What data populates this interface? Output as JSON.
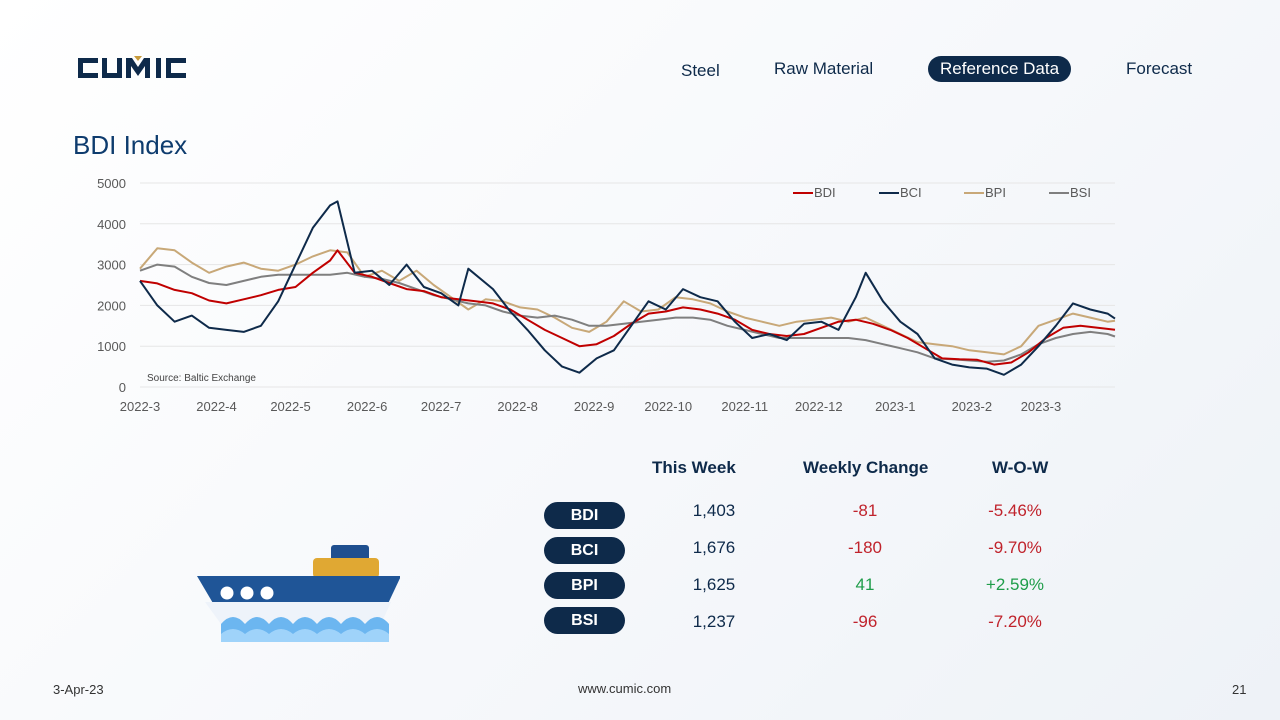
{
  "brand": {
    "logo_text": "CUMIC",
    "accent": "#0e2a4a",
    "gold": "#c89b3c"
  },
  "nav": {
    "items": [
      "Steel",
      "Raw Material",
      "Reference Data",
      "Forecast"
    ],
    "active": "Reference Data"
  },
  "page_title": "BDI Index",
  "chart_data": {
    "type": "line",
    "title": "",
    "ylim": [
      0,
      5000
    ],
    "yticks": [
      0,
      1000,
      2000,
      3000,
      4000,
      5000
    ],
    "x_range": [
      "2022-03-01",
      "2023-03-31"
    ],
    "xticks": [
      "2022-3",
      "2022-4",
      "2022-5",
      "2022-6",
      "2022-7",
      "2022-8",
      "2022-9",
      "2022-10",
      "2022-11",
      "2022-12",
      "2023-1",
      "2023-2",
      "2023-3"
    ],
    "legend_position": "top-right",
    "source_note": "Source: Baltic Exchange",
    "grid": true,
    "series": [
      {
        "name": "BDI",
        "color": "#c00000",
        "points": [
          [
            "2022-03-01",
            2600
          ],
          [
            "2022-03-08",
            2540
          ],
          [
            "2022-03-15",
            2380
          ],
          [
            "2022-03-22",
            2300
          ],
          [
            "2022-03-29",
            2120
          ],
          [
            "2022-04-05",
            2050
          ],
          [
            "2022-04-12",
            2150
          ],
          [
            "2022-04-19",
            2250
          ],
          [
            "2022-04-26",
            2380
          ],
          [
            "2022-05-03",
            2450
          ],
          [
            "2022-05-10",
            2800
          ],
          [
            "2022-05-17",
            3100
          ],
          [
            "2022-05-20",
            3350
          ],
          [
            "2022-05-27",
            2800
          ],
          [
            "2022-06-03",
            2700
          ],
          [
            "2022-06-10",
            2550
          ],
          [
            "2022-06-17",
            2400
          ],
          [
            "2022-06-24",
            2350
          ],
          [
            "2022-07-01",
            2200
          ],
          [
            "2022-07-08",
            2150
          ],
          [
            "2022-07-15",
            2100
          ],
          [
            "2022-07-22",
            2050
          ],
          [
            "2022-07-29",
            1900
          ],
          [
            "2022-08-05",
            1650
          ],
          [
            "2022-08-12",
            1400
          ],
          [
            "2022-08-19",
            1200
          ],
          [
            "2022-08-26",
            1000
          ],
          [
            "2022-09-02",
            1050
          ],
          [
            "2022-09-09",
            1250
          ],
          [
            "2022-09-16",
            1550
          ],
          [
            "2022-09-23",
            1800
          ],
          [
            "2022-09-30",
            1850
          ],
          [
            "2022-10-07",
            1950
          ],
          [
            "2022-10-14",
            1900
          ],
          [
            "2022-10-21",
            1800
          ],
          [
            "2022-10-28",
            1650
          ],
          [
            "2022-11-04",
            1400
          ],
          [
            "2022-11-11",
            1300
          ],
          [
            "2022-11-18",
            1250
          ],
          [
            "2022-11-25",
            1300
          ],
          [
            "2022-12-02",
            1450
          ],
          [
            "2022-12-09",
            1600
          ],
          [
            "2022-12-16",
            1650
          ],
          [
            "2022-12-23",
            1550
          ],
          [
            "2022-12-30",
            1400
          ],
          [
            "2023-01-06",
            1200
          ],
          [
            "2023-01-13",
            950
          ],
          [
            "2023-01-20",
            700
          ],
          [
            "2023-01-27",
            680
          ],
          [
            "2023-02-03",
            670
          ],
          [
            "2023-02-10",
            550
          ],
          [
            "2023-02-17",
            600
          ],
          [
            "2023-02-24",
            850
          ],
          [
            "2023-03-03",
            1200
          ],
          [
            "2023-03-10",
            1450
          ],
          [
            "2023-03-17",
            1500
          ],
          [
            "2023-03-24",
            1450
          ],
          [
            "2023-03-31",
            1403
          ]
        ]
      },
      {
        "name": "BCI",
        "color": "#0e2a4a",
        "points": [
          [
            "2022-03-01",
            2600
          ],
          [
            "2022-03-08",
            2000
          ],
          [
            "2022-03-15",
            1600
          ],
          [
            "2022-03-22",
            1750
          ],
          [
            "2022-03-29",
            1450
          ],
          [
            "2022-04-05",
            1400
          ],
          [
            "2022-04-12",
            1350
          ],
          [
            "2022-04-19",
            1500
          ],
          [
            "2022-04-26",
            2100
          ],
          [
            "2022-05-03",
            3000
          ],
          [
            "2022-05-10",
            3900
          ],
          [
            "2022-05-17",
            4450
          ],
          [
            "2022-05-20",
            4550
          ],
          [
            "2022-05-27",
            2800
          ],
          [
            "2022-06-03",
            2850
          ],
          [
            "2022-06-10",
            2500
          ],
          [
            "2022-06-17",
            3000
          ],
          [
            "2022-06-24",
            2450
          ],
          [
            "2022-07-01",
            2300
          ],
          [
            "2022-07-08",
            2000
          ],
          [
            "2022-07-12",
            2900
          ],
          [
            "2022-07-22",
            2400
          ],
          [
            "2022-07-29",
            1850
          ],
          [
            "2022-08-05",
            1400
          ],
          [
            "2022-08-12",
            900
          ],
          [
            "2022-08-19",
            500
          ],
          [
            "2022-08-26",
            350
          ],
          [
            "2022-09-02",
            700
          ],
          [
            "2022-09-09",
            900
          ],
          [
            "2022-09-16",
            1500
          ],
          [
            "2022-09-23",
            2100
          ],
          [
            "2022-09-30",
            1900
          ],
          [
            "2022-10-07",
            2400
          ],
          [
            "2022-10-14",
            2200
          ],
          [
            "2022-10-21",
            2100
          ],
          [
            "2022-10-28",
            1600
          ],
          [
            "2022-11-04",
            1200
          ],
          [
            "2022-11-11",
            1300
          ],
          [
            "2022-11-18",
            1150
          ],
          [
            "2022-11-25",
            1550
          ],
          [
            "2022-12-02",
            1600
          ],
          [
            "2022-12-09",
            1400
          ],
          [
            "2022-12-16",
            2200
          ],
          [
            "2022-12-20",
            2800
          ],
          [
            "2022-12-27",
            2100
          ],
          [
            "2023-01-03",
            1600
          ],
          [
            "2023-01-10",
            1300
          ],
          [
            "2023-01-17",
            700
          ],
          [
            "2023-01-24",
            550
          ],
          [
            "2023-01-31",
            480
          ],
          [
            "2023-02-07",
            450
          ],
          [
            "2023-02-14",
            300
          ],
          [
            "2023-02-21",
            550
          ],
          [
            "2023-02-28",
            1000
          ],
          [
            "2023-03-07",
            1500
          ],
          [
            "2023-03-14",
            2050
          ],
          [
            "2023-03-21",
            1900
          ],
          [
            "2023-03-28",
            1800
          ],
          [
            "2023-03-31",
            1676
          ]
        ]
      },
      {
        "name": "BPI",
        "color": "#c8a878",
        "points": [
          [
            "2022-03-01",
            2900
          ],
          [
            "2022-03-08",
            3400
          ],
          [
            "2022-03-15",
            3350
          ],
          [
            "2022-03-22",
            3050
          ],
          [
            "2022-03-29",
            2800
          ],
          [
            "2022-04-05",
            2950
          ],
          [
            "2022-04-12",
            3050
          ],
          [
            "2022-04-19",
            2900
          ],
          [
            "2022-04-26",
            2850
          ],
          [
            "2022-05-03",
            3000
          ],
          [
            "2022-05-10",
            3200
          ],
          [
            "2022-05-17",
            3350
          ],
          [
            "2022-05-24",
            3300
          ],
          [
            "2022-05-31",
            2700
          ],
          [
            "2022-06-07",
            2850
          ],
          [
            "2022-06-14",
            2600
          ],
          [
            "2022-06-21",
            2850
          ],
          [
            "2022-06-28",
            2500
          ],
          [
            "2022-07-05",
            2200
          ],
          [
            "2022-07-12",
            1900
          ],
          [
            "2022-07-19",
            2150
          ],
          [
            "2022-07-26",
            2100
          ],
          [
            "2022-08-02",
            1950
          ],
          [
            "2022-08-09",
            1900
          ],
          [
            "2022-08-16",
            1700
          ],
          [
            "2022-08-23",
            1450
          ],
          [
            "2022-08-30",
            1350
          ],
          [
            "2022-09-06",
            1600
          ],
          [
            "2022-09-13",
            2100
          ],
          [
            "2022-09-20",
            1850
          ],
          [
            "2022-09-27",
            1900
          ],
          [
            "2022-10-04",
            2200
          ],
          [
            "2022-10-11",
            2150
          ],
          [
            "2022-10-18",
            2050
          ],
          [
            "2022-10-25",
            1850
          ],
          [
            "2022-11-01",
            1700
          ],
          [
            "2022-11-08",
            1600
          ],
          [
            "2022-11-15",
            1500
          ],
          [
            "2022-11-22",
            1600
          ],
          [
            "2022-11-29",
            1650
          ],
          [
            "2022-12-06",
            1700
          ],
          [
            "2022-12-13",
            1600
          ],
          [
            "2022-12-20",
            1700
          ],
          [
            "2022-12-27",
            1500
          ],
          [
            "2023-01-03",
            1300
          ],
          [
            "2023-01-10",
            1100
          ],
          [
            "2023-01-17",
            1050
          ],
          [
            "2023-01-24",
            1000
          ],
          [
            "2023-01-31",
            900
          ],
          [
            "2023-02-07",
            850
          ],
          [
            "2023-02-14",
            800
          ],
          [
            "2023-02-21",
            1000
          ],
          [
            "2023-02-28",
            1500
          ],
          [
            "2023-03-07",
            1650
          ],
          [
            "2023-03-14",
            1800
          ],
          [
            "2023-03-21",
            1700
          ],
          [
            "2023-03-28",
            1600
          ],
          [
            "2023-03-31",
            1625
          ]
        ]
      },
      {
        "name": "BSI",
        "color": "#7f7f7f",
        "points": [
          [
            "2022-03-01",
            2850
          ],
          [
            "2022-03-08",
            3000
          ],
          [
            "2022-03-15",
            2950
          ],
          [
            "2022-03-22",
            2700
          ],
          [
            "2022-03-29",
            2550
          ],
          [
            "2022-04-05",
            2500
          ],
          [
            "2022-04-12",
            2600
          ],
          [
            "2022-04-19",
            2700
          ],
          [
            "2022-04-26",
            2750
          ],
          [
            "2022-05-03",
            2750
          ],
          [
            "2022-05-10",
            2750
          ],
          [
            "2022-05-17",
            2750
          ],
          [
            "2022-05-24",
            2800
          ],
          [
            "2022-05-31",
            2700
          ],
          [
            "2022-06-07",
            2650
          ],
          [
            "2022-06-14",
            2550
          ],
          [
            "2022-06-21",
            2400
          ],
          [
            "2022-06-28",
            2250
          ],
          [
            "2022-07-05",
            2150
          ],
          [
            "2022-07-12",
            2050
          ],
          [
            "2022-07-19",
            2000
          ],
          [
            "2022-07-26",
            1850
          ],
          [
            "2022-08-02",
            1750
          ],
          [
            "2022-08-09",
            1700
          ],
          [
            "2022-08-16",
            1750
          ],
          [
            "2022-08-23",
            1650
          ],
          [
            "2022-08-30",
            1500
          ],
          [
            "2022-09-06",
            1500
          ],
          [
            "2022-09-13",
            1550
          ],
          [
            "2022-09-20",
            1600
          ],
          [
            "2022-09-27",
            1650
          ],
          [
            "2022-10-04",
            1700
          ],
          [
            "2022-10-11",
            1700
          ],
          [
            "2022-10-18",
            1650
          ],
          [
            "2022-10-25",
            1500
          ],
          [
            "2022-11-01",
            1400
          ],
          [
            "2022-11-08",
            1300
          ],
          [
            "2022-11-15",
            1200
          ],
          [
            "2022-11-22",
            1200
          ],
          [
            "2022-11-29",
            1200
          ],
          [
            "2022-12-06",
            1200
          ],
          [
            "2022-12-13",
            1200
          ],
          [
            "2022-12-20",
            1150
          ],
          [
            "2022-12-27",
            1050
          ],
          [
            "2023-01-03",
            950
          ],
          [
            "2023-01-10",
            850
          ],
          [
            "2023-01-17",
            700
          ],
          [
            "2023-01-24",
            680
          ],
          [
            "2023-01-31",
            650
          ],
          [
            "2023-02-07",
            620
          ],
          [
            "2023-02-14",
            650
          ],
          [
            "2023-02-21",
            800
          ],
          [
            "2023-02-28",
            1050
          ],
          [
            "2023-03-07",
            1200
          ],
          [
            "2023-03-14",
            1300
          ],
          [
            "2023-03-21",
            1350
          ],
          [
            "2023-03-28",
            1300
          ],
          [
            "2023-03-31",
            1237
          ]
        ]
      }
    ]
  },
  "table": {
    "headers": [
      "This Week",
      "Weekly Change",
      "W-O-W"
    ],
    "rows": [
      {
        "index": "BDI",
        "this_week": "1,403",
        "weekly_change": "-81",
        "wow": "-5.46%",
        "direction": "down"
      },
      {
        "index": "BCI",
        "this_week": "1,676",
        "weekly_change": "-180",
        "wow": "-9.70%",
        "direction": "down"
      },
      {
        "index": "BPI",
        "this_week": "1,625",
        "weekly_change": "41",
        "wow": "+2.59%",
        "direction": "up"
      },
      {
        "index": "BSI",
        "this_week": "1,237",
        "weekly_change": "-96",
        "wow": "-7.20%",
        "direction": "down"
      }
    ],
    "colors": {
      "down": "#c0232c",
      "up": "#1f9d4a"
    }
  },
  "illustration": {
    "icon": "cargo-ship-icon"
  },
  "footer": {
    "date": "3-Apr-23",
    "website": "www.cumic.com",
    "page_number": "21"
  }
}
